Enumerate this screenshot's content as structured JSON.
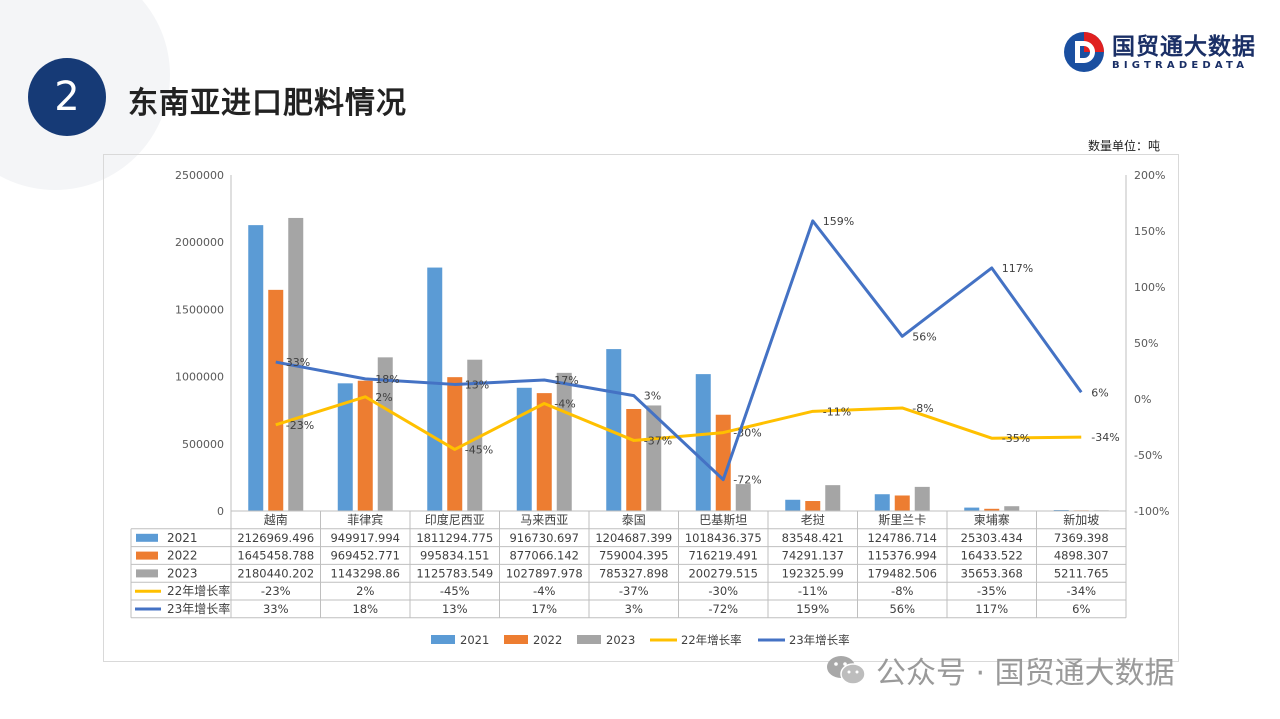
{
  "header": {
    "section_number": "2",
    "title": "东南亚进口肥料情况",
    "logo_cn": "国贸通大数据",
    "logo_en": "BIGTRADEDATA",
    "unit": "数量单位：吨"
  },
  "watermark": "公众号 · 国贸通大数据",
  "colors": {
    "s2021": "#5b9bd5",
    "s2022": "#ed7d31",
    "s2023": "#a5a5a5",
    "g22": "#ffc000",
    "g23": "#4472c4",
    "badge": "#163a76"
  },
  "chart_data": {
    "type": "bar",
    "categories": [
      "越南",
      "菲律宾",
      "印度尼西亚",
      "马来西亚",
      "泰国",
      "巴基斯坦",
      "老挝",
      "斯里兰卡",
      "柬埔寨",
      "新加坡"
    ],
    "series": [
      {
        "name": "2021",
        "type": "bar",
        "axis": "left",
        "values": [
          2126969.496,
          949917.994,
          1811294.775,
          916730.697,
          1204687.399,
          1018436.375,
          83548.421,
          124786.714,
          25303.434,
          7369.398
        ],
        "labels": [
          "2126969.496",
          "949917.994",
          "1811294.775",
          "916730.697",
          "1204687.399",
          "1018436.375",
          "83548.421",
          "124786.714",
          "25303.434",
          "7369.398"
        ]
      },
      {
        "name": "2022",
        "type": "bar",
        "axis": "left",
        "values": [
          1645458.788,
          969452.771,
          995834.151,
          877066.142,
          759004.395,
          716219.491,
          74291.137,
          115376.994,
          16433.522,
          4898.307
        ],
        "labels": [
          "1645458.788",
          "969452.771",
          "995834.151",
          "877066.142",
          "759004.395",
          "716219.491",
          "74291.137",
          "115376.994",
          "16433.522",
          "4898.307"
        ]
      },
      {
        "name": "2023",
        "type": "bar",
        "axis": "left",
        "values": [
          2180440.202,
          1143298.86,
          1125783.549,
          1027897.978,
          785327.898,
          200279.515,
          192325.99,
          179482.506,
          35653.368,
          5211.765
        ],
        "labels": [
          "2180440.202",
          "1143298.86",
          "1125783.549",
          "1027897.978",
          "785327.898",
          "200279.515",
          "192325.99",
          "179482.506",
          "35653.368",
          "5211.765"
        ]
      },
      {
        "name": "22年增长率",
        "type": "line",
        "axis": "right",
        "values": [
          -23,
          2,
          -45,
          -4,
          -37,
          -30,
          -11,
          -8,
          -35,
          -34
        ],
        "labels": [
          "-23%",
          "2%",
          "-45%",
          "-4%",
          "-37%",
          "-30%",
          "-11%",
          "-8%",
          "-35%",
          "-34%"
        ]
      },
      {
        "name": "23年增长率",
        "type": "line",
        "axis": "right",
        "values": [
          33,
          18,
          13,
          17,
          3,
          -72,
          159,
          56,
          117,
          6
        ],
        "labels": [
          "33%",
          "18%",
          "13%",
          "17%",
          "3%",
          "-72%",
          "159%",
          "56%",
          "117%",
          "6%"
        ]
      }
    ],
    "y_left": {
      "min": 0,
      "max": 2500000,
      "ticks": [
        "0",
        "500000",
        "1000000",
        "1500000",
        "2000000",
        "2500000"
      ]
    },
    "y_right": {
      "min": -100,
      "max": 200,
      "ticks": [
        "-100%",
        "-50%",
        "0%",
        "50%",
        "100%",
        "150%",
        "200%"
      ]
    },
    "legend_position": "bottom",
    "grid": false,
    "data_table": true
  }
}
